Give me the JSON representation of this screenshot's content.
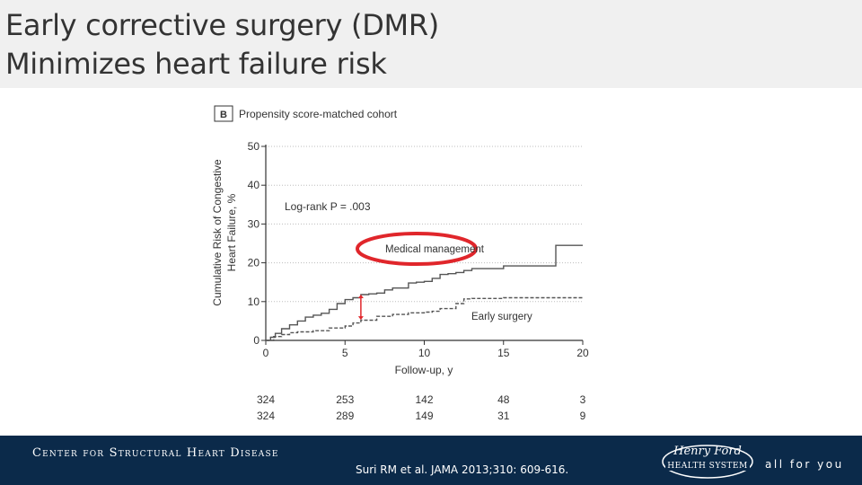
{
  "slide": {
    "title_line1": "Early corrective surgery (DMR)",
    "title_line2": "Minimizes heart failure risk"
  },
  "chart_data": {
    "type": "line",
    "panel_label": "B",
    "title": "Propensity score-matched cohort",
    "xlabel": "Follow-up, y",
    "ylabel_line1": "Cumulative Risk of Congestive",
    "ylabel_line2": "Heart Failure, %",
    "xlim": [
      0,
      20
    ],
    "ylim": [
      0,
      50
    ],
    "xticks": [
      0,
      5,
      10,
      15,
      20
    ],
    "yticks": [
      0,
      10,
      20,
      30,
      40,
      50
    ],
    "annotation": "Log-rank P = .003",
    "series": [
      {
        "name": "Medical management",
        "style": "solid",
        "color": "#555555",
        "x": [
          0,
          0.3,
          0.6,
          1,
          1.5,
          2,
          2.5,
          3,
          3.5,
          4,
          4.5,
          5,
          5.5,
          6,
          6.5,
          7,
          7.5,
          8,
          8.5,
          9,
          9.5,
          10,
          10.5,
          11,
          11.5,
          12,
          12.5,
          13,
          14,
          15,
          16,
          17,
          18,
          18.3,
          19,
          20
        ],
        "y": [
          0,
          0.8,
          1.8,
          3,
          4,
          5,
          6,
          6.5,
          7,
          8,
          9.5,
          10.5,
          11,
          11.8,
          12,
          12.2,
          13,
          13.5,
          13.5,
          14.8,
          15,
          15.2,
          16,
          17,
          17.2,
          17.5,
          18,
          18.5,
          18.5,
          19.2,
          19.2,
          19.2,
          19.2,
          24.5,
          24.5,
          24.5
        ]
      },
      {
        "name": "Early surgery",
        "style": "dashed",
        "color": "#555555",
        "x": [
          0,
          0.5,
          1,
          1.5,
          2,
          3,
          4,
          5,
          5.5,
          6,
          7,
          8,
          9,
          10,
          10.5,
          11,
          12,
          12.5,
          13,
          14,
          15,
          17,
          18,
          20
        ],
        "y": [
          0,
          1,
          1.5,
          2,
          2.2,
          2.5,
          3.2,
          3.7,
          4.5,
          5.2,
          6.2,
          6.7,
          7.1,
          7.3,
          7.5,
          8.2,
          9.5,
          10.7,
          10.8,
          10.8,
          11,
          11,
          11,
          11
        ]
      }
    ],
    "highlight": {
      "series": "Medical management",
      "ellipse_color": "#e0262b",
      "gap_arrow_x": 6,
      "gap_arrow_from": 5.3,
      "gap_arrow_to": 11.8
    },
    "risk_table": {
      "times": [
        0,
        5,
        10,
        15,
        20
      ],
      "rows": [
        {
          "values": [
            "324",
            "253",
            "142",
            "48",
            "3"
          ]
        },
        {
          "values": [
            "324",
            "289",
            "149",
            "31",
            "9"
          ]
        }
      ]
    }
  },
  "footer": {
    "center_name": "Center for Structural Heart Disease",
    "citation": "Suri RM et al. JAMA 2013;310: 609-616.",
    "logo_text_line1": "Henry Ford",
    "logo_text_line2": "HEALTH SYSTEM",
    "tagline": "all for you",
    "background_color": "#0b2a4a"
  }
}
